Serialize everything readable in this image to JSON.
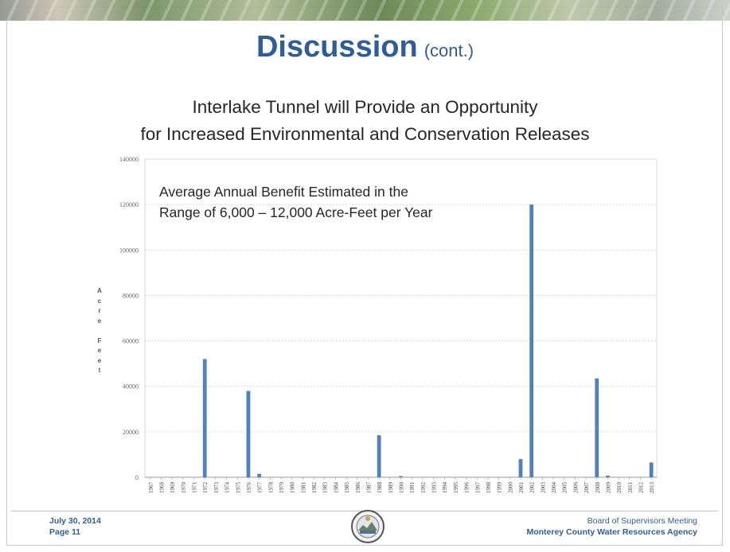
{
  "slide": {
    "title_main": "Discussion",
    "title_sub": "(cont.)",
    "subtitle_line1": "Interlake Tunnel will Provide an Opportunity",
    "subtitle_line2": "for Increased Environmental and Conservation Releases",
    "annotation_line1": "Average Annual Benefit Estimated in the",
    "annotation_line2": "Range of 6,000 – 12,000 Acre-Feet per Year",
    "footer_date": "July 30, 2014",
    "footer_page": "Page 11",
    "footer_meeting": "Board of Supervisors Meeting",
    "footer_agency": "Monterey County Water Resources Agency",
    "title_color": "#2e5d9a"
  },
  "chart_data": {
    "type": "bar",
    "title": "",
    "xlabel": "",
    "ylabel": "Acre Feet",
    "ylim": [
      0,
      140000
    ],
    "yticks": [
      "0",
      "20000",
      "40000",
      "60000",
      "80000",
      "100000",
      "120000",
      "140000"
    ],
    "grid": true,
    "bar_color": "#4f81bd",
    "categories": [
      "1967",
      "1968",
      "1969",
      "1970",
      "1971",
      "1972",
      "1973",
      "1974",
      "1975",
      "1976",
      "1977",
      "1978",
      "1979",
      "1980",
      "1981",
      "1982",
      "1983",
      "1984",
      "1985",
      "1986",
      "1987",
      "1988",
      "1989",
      "1990",
      "1991",
      "1992",
      "1993",
      "1994",
      "1995",
      "1996",
      "1997",
      "1998",
      "1999",
      "2000",
      "2001",
      "2002",
      "2003",
      "2004",
      "2005",
      "2006",
      "2007",
      "2008",
      "2009",
      "2010",
      "2011",
      "2012",
      "2013"
    ],
    "values": [
      0,
      0,
      0,
      0,
      0,
      52000,
      0,
      0,
      0,
      38000,
      1500,
      0,
      0,
      0,
      0,
      0,
      0,
      0,
      0,
      0,
      0,
      18500,
      0,
      500,
      0,
      0,
      0,
      0,
      0,
      0,
      0,
      0,
      0,
      0,
      8000,
      120000,
      0,
      0,
      0,
      0,
      0,
      43500,
      700,
      0,
      0,
      0,
      6500
    ]
  }
}
